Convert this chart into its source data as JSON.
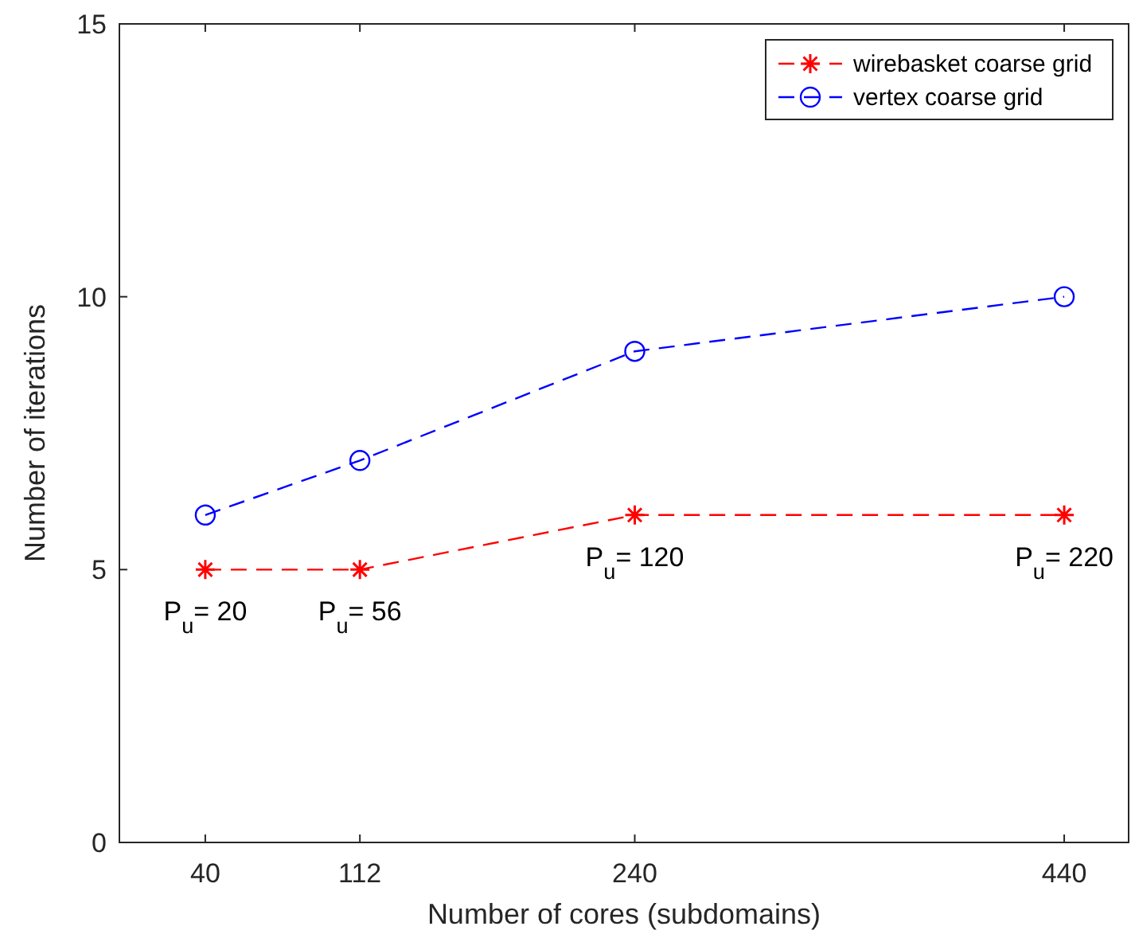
{
  "chart_data": {
    "type": "line",
    "xlabel": "Number of cores (subdomains)",
    "ylabel": "Number of iterations",
    "x": [
      40,
      112,
      240,
      440
    ],
    "series": [
      {
        "name": "wirebasket coarse grid",
        "color": "#ff0000",
        "values": [
          5,
          5,
          6,
          6
        ],
        "marker": "cross"
      },
      {
        "name": "vertex coarse grid",
        "color": "#0000ff",
        "values": [
          6,
          7,
          9,
          10
        ],
        "marker": "circle"
      }
    ],
    "xlim": [
      0,
      470
    ],
    "xticks": [
      40,
      112,
      240,
      440
    ],
    "ylim": [
      0,
      15
    ],
    "yticks": [
      0,
      5,
      10,
      15
    ],
    "line_style": "dashed",
    "legend": "top right",
    "grid": false,
    "annotations": [
      {
        "text": "P$_{u}$= 20",
        "x": 40,
        "y": 5
      },
      {
        "text": "P$_{u}$= 56",
        "x": 112,
        "y": 5
      },
      {
        "text": "P$_{u}$= 120",
        "x": 240,
        "y": 6
      },
      {
        "text": "P$_{u}$= 220",
        "x": 440,
        "y": 6
      }
    ]
  }
}
